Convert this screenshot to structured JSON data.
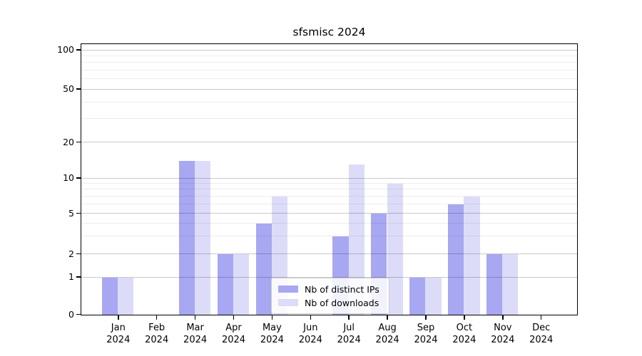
{
  "title": "sfsmisc 2024",
  "colors": {
    "bar_distinct_ips": "#a7a7f2",
    "bar_downloads": "#dcdcf9",
    "grid_major": "#c9c9c9",
    "grid_minor": "#ededed",
    "axis": "#000000",
    "legend_border": "#cccccc"
  },
  "chart_data": {
    "type": "bar",
    "title": "sfsmisc 2024",
    "categories": [
      "Jan",
      "Feb",
      "Mar",
      "Apr",
      "May",
      "Jun",
      "Jul",
      "Aug",
      "Sep",
      "Oct",
      "Nov",
      "Dec"
    ],
    "category_sublabel": "2024",
    "series": [
      {
        "name": "Nb of distinct IPs",
        "color": "#a7a7f2",
        "values": [
          1,
          0,
          14,
          2,
          4,
          0,
          3,
          5,
          1,
          6,
          2,
          0
        ]
      },
      {
        "name": "Nb of downloads",
        "color": "#dcdcf9",
        "values": [
          1,
          0,
          14,
          2,
          7,
          0,
          13,
          9,
          1,
          7,
          2,
          0
        ]
      }
    ],
    "y_axis": {
      "ticks": [
        0,
        1,
        2,
        5,
        10,
        20,
        50,
        100
      ],
      "minor_gridlines": [
        3,
        4,
        6,
        7,
        8,
        9,
        30,
        40,
        60,
        70,
        80,
        90
      ],
      "scale": "log1p",
      "range": [
        0,
        100
      ]
    },
    "xlabel": "",
    "ylabel": "",
    "grid": true,
    "legend_position": "lower center"
  }
}
